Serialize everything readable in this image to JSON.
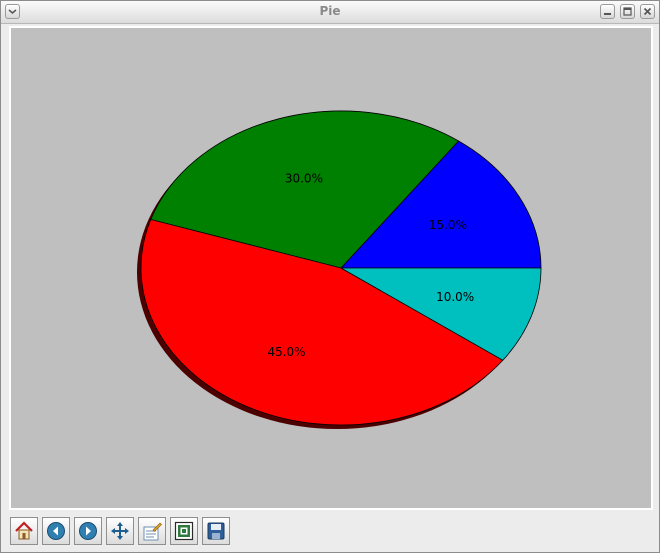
{
  "window": {
    "title": "Pie"
  },
  "toolbar": {
    "icons": [
      "home-icon",
      "back-icon",
      "forward-icon",
      "pan-icon",
      "configure-subplots-icon",
      "zoom-to-rect-icon",
      "save-icon"
    ]
  },
  "colors": {
    "axes_background": "#bfbfbf",
    "slice_blue": "#0000ff",
    "slice_green": "#008000",
    "slice_red": "#ff0000",
    "slice_cyan": "#00bfbf"
  },
  "chart_data": {
    "type": "pie",
    "title": "",
    "shadow": true,
    "explode_none": true,
    "start_angle_deg": 0,
    "counterclockwise": true,
    "slices": [
      {
        "label": "15.0%",
        "value": 15,
        "color": "#0000ff"
      },
      {
        "label": "30.0%",
        "value": 30,
        "color": "#008000"
      },
      {
        "label": "45.0%",
        "value": 45,
        "color": "#ff0000"
      },
      {
        "label": "10.0%",
        "value": 10,
        "color": "#00bfbf"
      }
    ]
  }
}
